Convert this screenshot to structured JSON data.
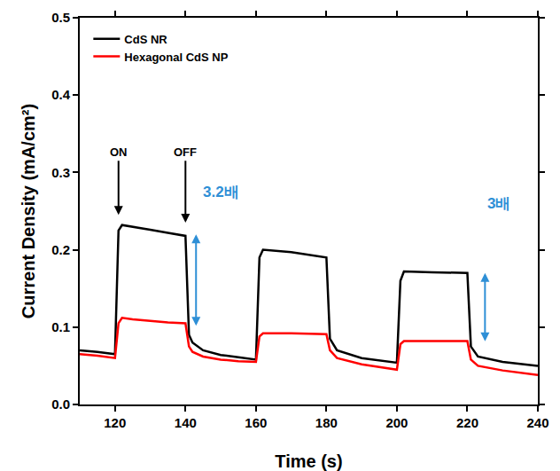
{
  "chart_data": {
    "type": "line",
    "x_label": "Time (s)",
    "y_label": "Current Density (mA/cm²)",
    "xlim": [
      110,
      240
    ],
    "xticks": [
      120,
      140,
      160,
      180,
      200,
      220,
      240
    ],
    "ylim": [
      0,
      0.5
    ],
    "yticks": [
      {
        "value": 0,
        "label": "0.0"
      },
      0.1,
      0.2,
      0.3,
      0.4,
      0.5
    ],
    "legend": "upper left",
    "grid": false,
    "x": [
      110,
      115,
      120,
      121,
      122,
      125,
      130,
      135,
      140,
      141,
      142,
      145,
      150,
      155,
      160,
      161,
      162,
      170,
      180,
      181,
      183,
      190,
      200,
      201,
      202,
      210,
      220,
      221,
      223,
      230,
      240
    ],
    "series": [
      {
        "name": "CdS NR",
        "color": "#000000",
        "values": [
          0.07,
          0.068,
          0.065,
          0.225,
          0.232,
          0.23,
          0.226,
          0.222,
          0.218,
          0.09,
          0.08,
          0.07,
          0.064,
          0.061,
          0.058,
          0.19,
          0.2,
          0.197,
          0.19,
          0.085,
          0.07,
          0.06,
          0.054,
          0.16,
          0.172,
          0.171,
          0.17,
          0.075,
          0.062,
          0.055,
          0.05
        ]
      },
      {
        "name": "Hexagonal CdS NP",
        "color": "#ff0000",
        "values": [
          0.065,
          0.063,
          0.06,
          0.105,
          0.112,
          0.11,
          0.108,
          0.106,
          0.105,
          0.075,
          0.068,
          0.062,
          0.058,
          0.056,
          0.055,
          0.088,
          0.092,
          0.092,
          0.091,
          0.07,
          0.06,
          0.052,
          0.045,
          0.078,
          0.082,
          0.082,
          0.082,
          0.058,
          0.05,
          0.044,
          0.038
        ]
      }
    ],
    "annotations": [
      {
        "text": "ON",
        "x": 121,
        "y": 0.315,
        "arrow_x": 121,
        "arrow_y": 0.245,
        "color": "#000000"
      },
      {
        "text": "OFF",
        "x": 140,
        "y": 0.315,
        "arrow_x": 140,
        "arrow_y": 0.235,
        "color": "#000000"
      }
    ],
    "brackets": [
      {
        "label": "3.2배",
        "x": 143,
        "y0": 0.1,
        "y1": 0.22,
        "label_x": 150,
        "label_y": 0.275,
        "color": "#2e8fd6"
      },
      {
        "label": "3배",
        "x": 225,
        "y0": 0.08,
        "y1": 0.17,
        "label_x": 229,
        "label_y": 0.26,
        "color": "#2e8fd6"
      }
    ]
  }
}
